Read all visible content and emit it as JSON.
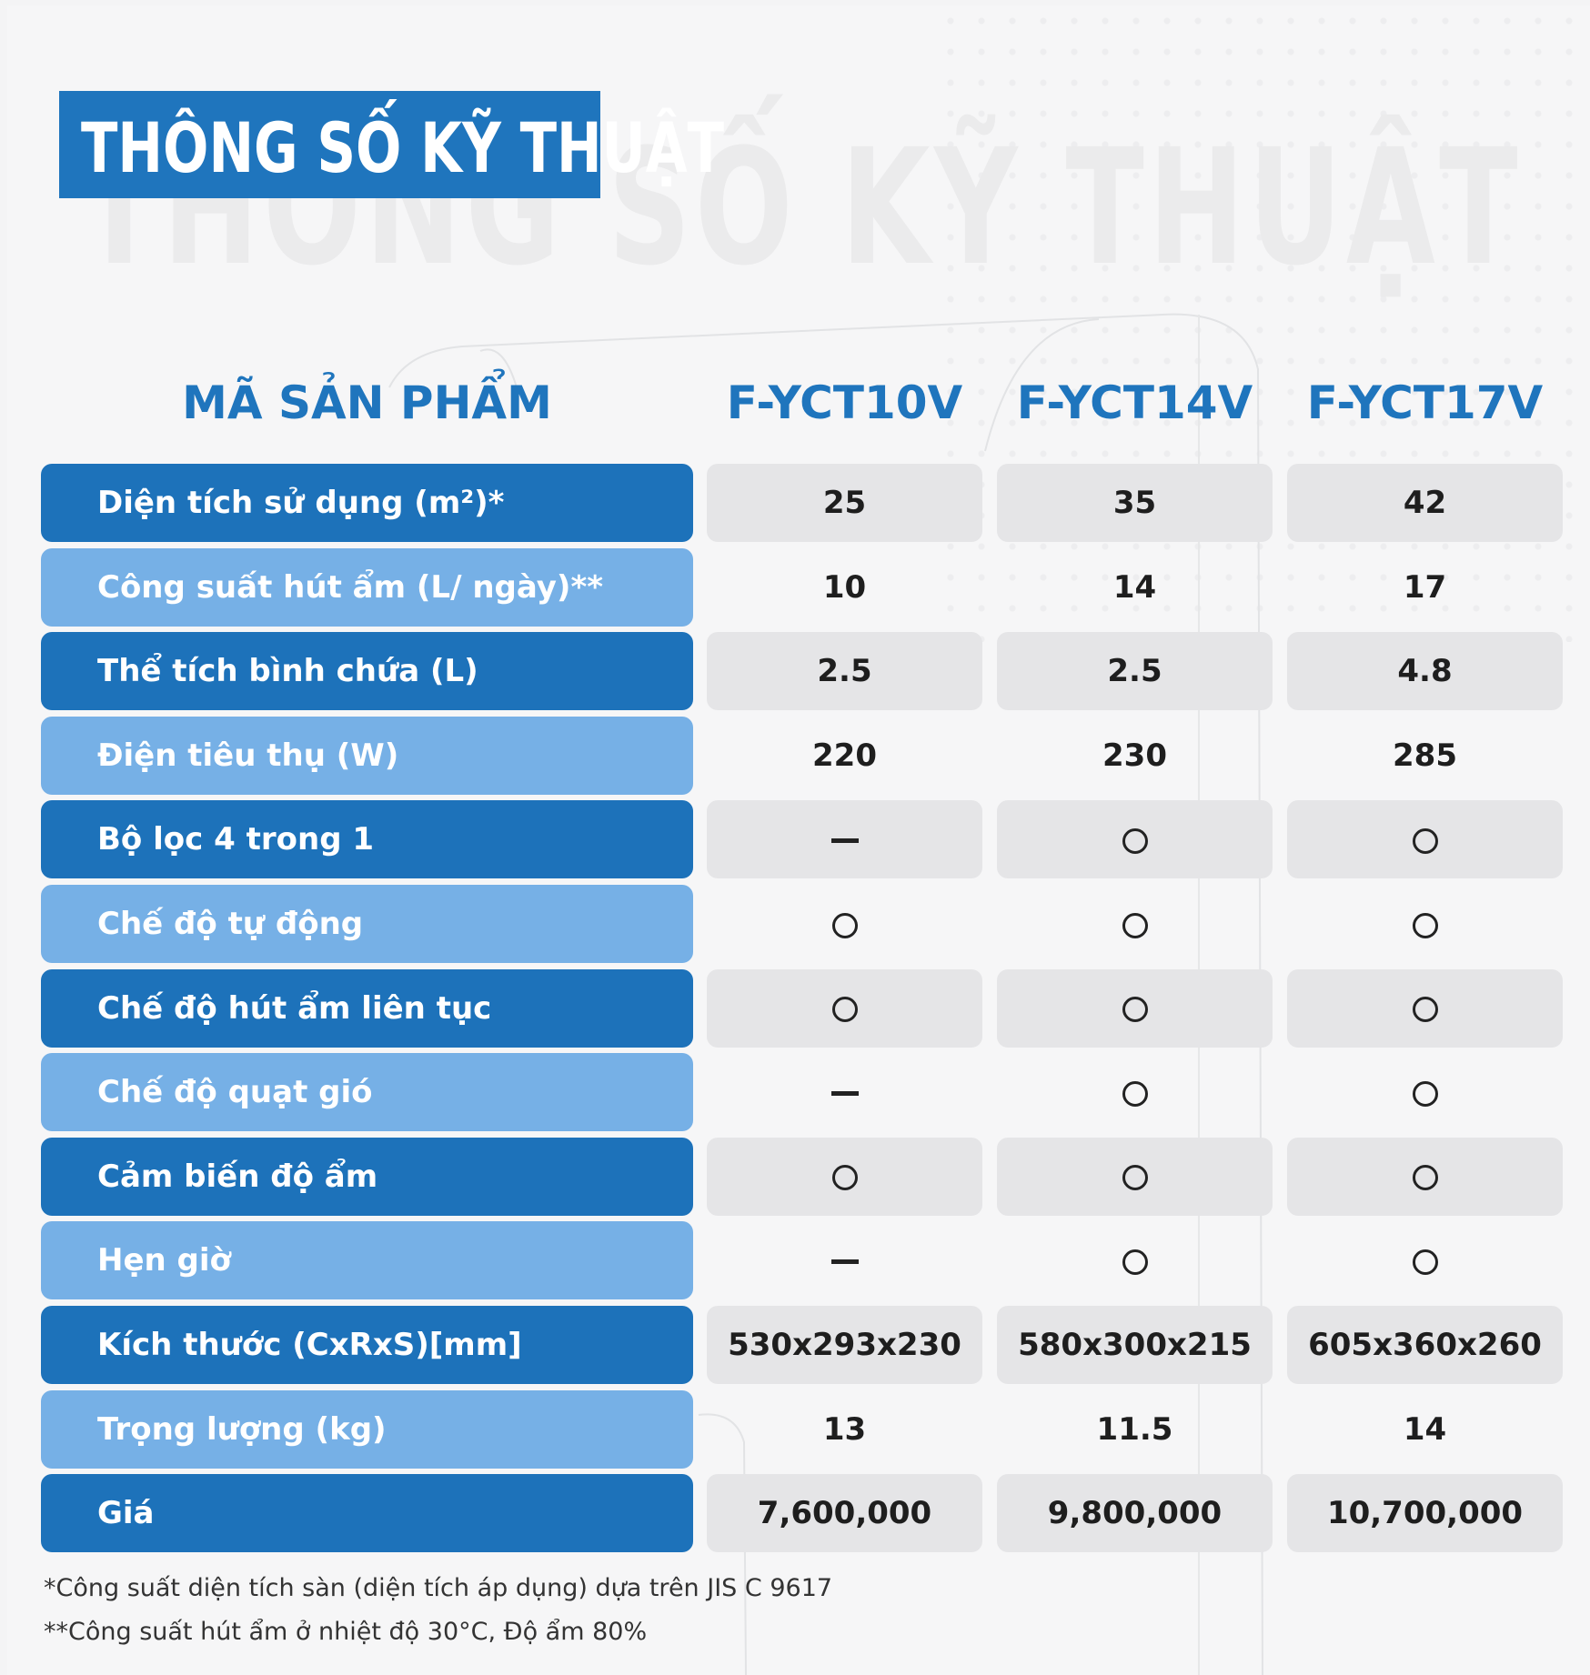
{
  "title": "THÔNG SỐ KỸ THUẬT",
  "header": {
    "label": "MÃ SẢN PHẨM",
    "models": [
      "F-YCT10V",
      "F-YCT14V",
      "F-YCT17V"
    ]
  },
  "rows": [
    {
      "label": "Diện tích sử dụng (m²)*",
      "values": [
        "25",
        "35",
        "42"
      ]
    },
    {
      "label": "Công suất hút ẩm (L/ ngày)**",
      "values": [
        "10",
        "14",
        "17"
      ]
    },
    {
      "label": "Thể tích bình chứa (L)",
      "values": [
        "2.5",
        "2.5",
        "4.8"
      ]
    },
    {
      "label": "Điện tiêu thụ (W)",
      "values": [
        "220",
        "230",
        "285"
      ]
    },
    {
      "label": "Bộ lọc 4 trong 1",
      "values": [
        "dash",
        "circle",
        "circle"
      ]
    },
    {
      "label": "Chế độ tự động",
      "values": [
        "circle",
        "circle",
        "circle"
      ]
    },
    {
      "label": "Chế độ hút ẩm liên tục",
      "values": [
        "circle",
        "circle",
        "circle"
      ]
    },
    {
      "label": "Chế độ quạt gió",
      "values": [
        "dash",
        "circle",
        "circle"
      ]
    },
    {
      "label": "Cảm biến độ ẩm",
      "values": [
        "circle",
        "circle",
        "circle"
      ]
    },
    {
      "label": "Hẹn giờ",
      "values": [
        "dash",
        "circle",
        "circle"
      ]
    },
    {
      "label": "Kích thước (CxRxS)[mm]",
      "values": [
        "530x293x230",
        "580x300x215",
        "605x360x260"
      ]
    },
    {
      "label": "Trọng lượng (kg)",
      "values": [
        "13",
        "11.5",
        "14"
      ]
    },
    {
      "label": "Giá",
      "values": [
        "7,600,000",
        "9,800,000",
        "10,700,000"
      ]
    }
  ],
  "notes": [
    "*Công suất diện tích sàn (diện tích áp dụng) dựa trên JIS C 9617",
    "**Công suất hút ẩm ở nhiệt độ 30°C, Độ ẩm 80%"
  ],
  "colors": {
    "dark_blue": "#1d72ba",
    "light_blue": "#76b0e6",
    "cell_gray": "#e5e5e7",
    "header_blue": "#1f75bd"
  }
}
